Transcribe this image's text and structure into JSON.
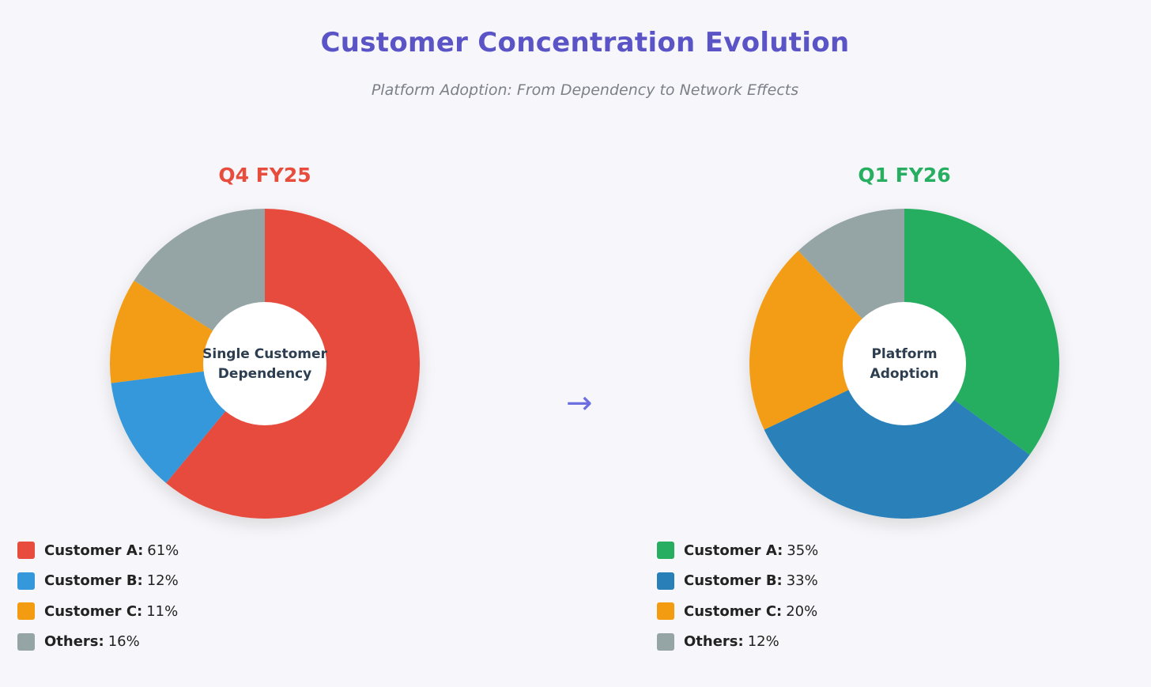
{
  "header": {
    "title": "Customer Concentration Evolution",
    "subtitle": "Platform Adoption: From Dependency to Network Effects"
  },
  "arrow": "→",
  "chart_data": [
    {
      "type": "pie",
      "title": "Q4 FY25",
      "title_color": "#e74c3c",
      "center_label": [
        "Single Customer",
        "Dependency"
      ],
      "slices": [
        {
          "label": "Customer A:",
          "value": 61,
          "display": "61%",
          "color": "#e74c3c"
        },
        {
          "label": "Customer B:",
          "value": 12,
          "display": "12%",
          "color": "#3498db"
        },
        {
          "label": "Customer C:",
          "value": 11,
          "display": "11%",
          "color": "#f39c12"
        },
        {
          "label": "Others:",
          "value": 16,
          "display": "16%",
          "color": "#95a5a6"
        }
      ]
    },
    {
      "type": "pie",
      "title": "Q1 FY26",
      "title_color": "#27ae60",
      "center_label": [
        "Platform",
        "Adoption"
      ],
      "slices": [
        {
          "label": "Customer A:",
          "value": 35,
          "display": "35%",
          "color": "#27ae60"
        },
        {
          "label": "Customer B:",
          "value": 33,
          "display": "33%",
          "color": "#2980b9"
        },
        {
          "label": "Customer C:",
          "value": 20,
          "display": "20%",
          "color": "#f39c12"
        },
        {
          "label": "Others:",
          "value": 12,
          "display": "12%",
          "color": "#95a5a6"
        }
      ]
    }
  ]
}
